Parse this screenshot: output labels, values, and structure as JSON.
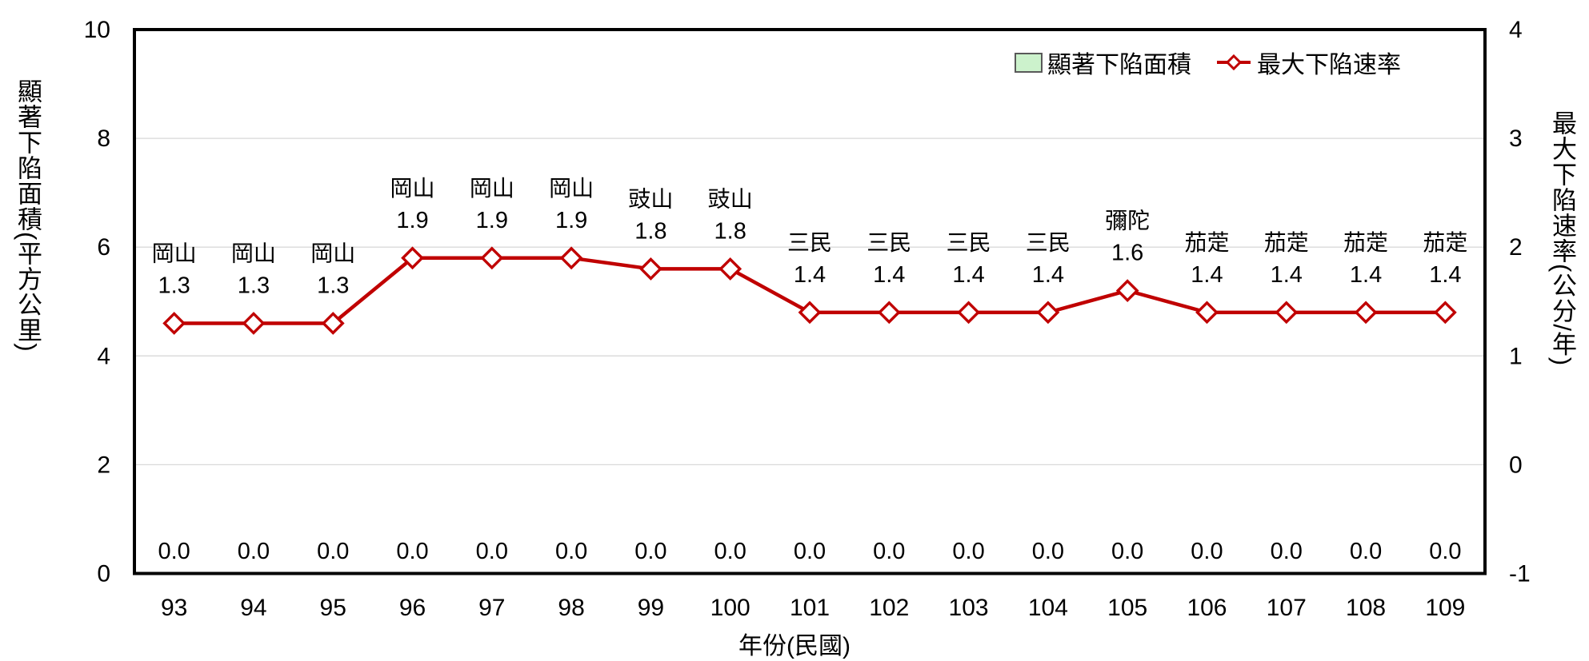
{
  "page": {
    "background": "#FFFFFF"
  },
  "legend": {
    "area_label": "顯著下陷面積",
    "line_label": "最大下陷速率"
  },
  "axes": {
    "left_title": "顯著下陷面積(平方公里)",
    "right_title": "最大下陷速率(公分/年)",
    "x_title": "年份(民國)"
  },
  "colors": {
    "line": "#C00000",
    "marker_fill": "#FFFFFF",
    "area_fill": "#CCF2CC",
    "area_border": "#595959",
    "grid": "#D9D9D9",
    "axis": "#000000",
    "text": "#000000"
  },
  "chart_data": {
    "type": "line",
    "title": "",
    "categories": [
      "93",
      "94",
      "95",
      "96",
      "97",
      "98",
      "99",
      "100",
      "101",
      "102",
      "103",
      "104",
      "105",
      "106",
      "107",
      "108",
      "109"
    ],
    "x_label": "年份(民國)",
    "grid": true,
    "legend_position": "top-right",
    "left_axis": {
      "title": "顯著下陷面積(平方公里)",
      "range": [
        0,
        10
      ],
      "ticks": [
        10,
        8,
        6,
        4,
        2,
        0
      ]
    },
    "right_axis": {
      "title": "最大下陷速率(公分/年)",
      "range": [
        -1,
        4
      ],
      "ticks": [
        4,
        3,
        2,
        1,
        0,
        -1
      ],
      "gridlines": [
        3,
        2,
        1,
        0
      ]
    },
    "series": [
      {
        "name": "顯著下陷面積",
        "type": "area",
        "axis": "left",
        "color": "#CCF2CC",
        "values": [
          0,
          0,
          0,
          0,
          0,
          0,
          0,
          0,
          0,
          0,
          0,
          0,
          0,
          0,
          0,
          0,
          0
        ],
        "value_labels": [
          "0.0",
          "0.0",
          "0.0",
          "0.0",
          "0.0",
          "0.0",
          "0.0",
          "0.0",
          "0.0",
          "0.0",
          "0.0",
          "0.0",
          "0.0",
          "0.0",
          "0.0",
          "0.0",
          "0.0"
        ]
      },
      {
        "name": "最大下陷速率",
        "type": "line",
        "axis": "right",
        "color": "#C00000",
        "marker": "open-diamond",
        "values": [
          1.3,
          1.3,
          1.3,
          1.9,
          1.9,
          1.9,
          1.8,
          1.8,
          1.4,
          1.4,
          1.4,
          1.4,
          1.6,
          1.4,
          1.4,
          1.4,
          1.4
        ],
        "point_labels": [
          "岡山",
          "岡山",
          "岡山",
          "岡山",
          "岡山",
          "岡山",
          "豉山",
          "豉山",
          "三民",
          "三民",
          "三民",
          "三民",
          "彌陀",
          "茄萣",
          "茄萣",
          "茄萣",
          "茄萣"
        ],
        "value_labels": [
          "1.3",
          "1.3",
          "1.3",
          "1.9",
          "1.9",
          "1.9",
          "1.8",
          "1.8",
          "1.4",
          "1.4",
          "1.4",
          "1.4",
          "1.6",
          "1.4",
          "1.4",
          "1.4",
          "1.4"
        ]
      }
    ]
  }
}
